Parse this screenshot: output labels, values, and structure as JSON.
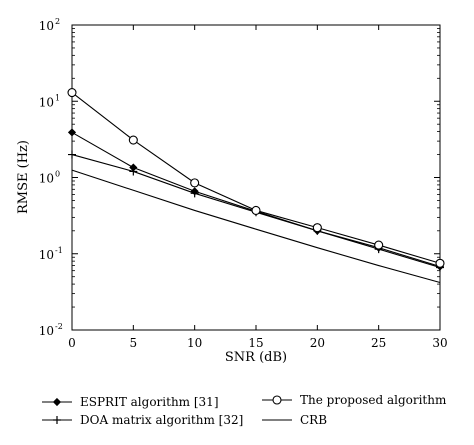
{
  "chart_data": {
    "type": "line",
    "xlabel": "SNR (dB)",
    "ylabel": "RMSE (Hz)",
    "xlim": [
      0,
      30
    ],
    "ylim": [
      0.01,
      100
    ],
    "yscale": "log",
    "grid": false,
    "legend_position": "bottom, two columns below the plot",
    "x_ticks": [
      {
        "value": 0,
        "label": "0"
      },
      {
        "value": 5,
        "label": "5"
      },
      {
        "value": 10,
        "label": "10"
      },
      {
        "value": 15,
        "label": "15"
      },
      {
        "value": 20,
        "label": "20"
      },
      {
        "value": 25,
        "label": "25"
      },
      {
        "value": 30,
        "label": "30"
      }
    ],
    "y_ticks": [
      {
        "value": 0.01,
        "base": "10",
        "exp": "-2"
      },
      {
        "value": 0.1,
        "base": "10",
        "exp": "-1"
      },
      {
        "value": 1,
        "base": "10",
        "exp": "0"
      },
      {
        "value": 10,
        "base": "10",
        "exp": "1"
      },
      {
        "value": 100,
        "base": "10",
        "exp": "2"
      }
    ],
    "x": [
      0,
      5,
      10,
      15,
      20,
      25,
      30
    ],
    "series": [
      {
        "name": "ESPRIT algorithm [31]",
        "marker": "diamond",
        "values": [
          3.9,
          1.35,
          0.66,
          0.36,
          0.2,
          0.12,
          0.068
        ]
      },
      {
        "name": "DOA matrix algorithm [32]",
        "marker": "plus",
        "values": [
          2.0,
          1.2,
          0.62,
          0.35,
          0.2,
          0.115,
          0.066
        ]
      },
      {
        "name": "The proposed algorithm",
        "marker": "circle",
        "values": [
          13.0,
          3.1,
          0.85,
          0.37,
          0.22,
          0.13,
          0.075
        ]
      },
      {
        "name": "CRB",
        "marker": "none",
        "values": [
          1.25,
          0.68,
          0.37,
          0.21,
          0.12,
          0.07,
          0.042
        ]
      }
    ]
  }
}
